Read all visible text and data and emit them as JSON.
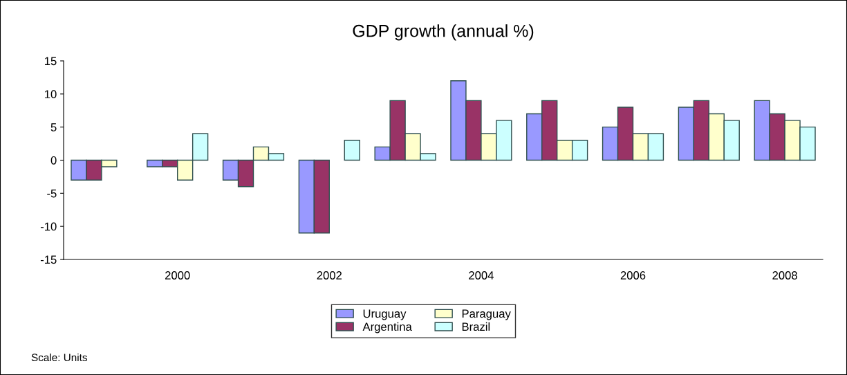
{
  "chart_data": {
    "type": "bar",
    "title": "GDP growth (annual %)",
    "categories": [
      null,
      "2000",
      null,
      "2002",
      null,
      "2004",
      null,
      "2006",
      null,
      "2008"
    ],
    "series": [
      {
        "name": "Uruguay",
        "color": "#9999ff",
        "values": [
          -3,
          -1,
          -3,
          -11,
          2,
          12,
          7,
          5,
          8,
          9
        ]
      },
      {
        "name": "Argentina",
        "color": "#993366",
        "values": [
          -3,
          -1,
          -4,
          -11,
          9,
          9,
          9,
          8,
          9,
          7
        ]
      },
      {
        "name": "Paraguay",
        "color": "#ffffcc",
        "values": [
          -1,
          -3,
          2,
          null,
          4,
          4,
          3,
          4,
          7,
          6
        ]
      },
      {
        "name": "Brazil",
        "color": "#ccffff",
        "values": [
          null,
          4,
          1,
          3,
          1,
          6,
          3,
          4,
          6,
          5
        ]
      }
    ],
    "ylim": [
      -15,
      15
    ],
    "yticks": [
      -15,
      -10,
      -5,
      0,
      5,
      10,
      15
    ],
    "grid": false,
    "legend": "bottom",
    "annotations": [
      "Scale: Units"
    ]
  }
}
